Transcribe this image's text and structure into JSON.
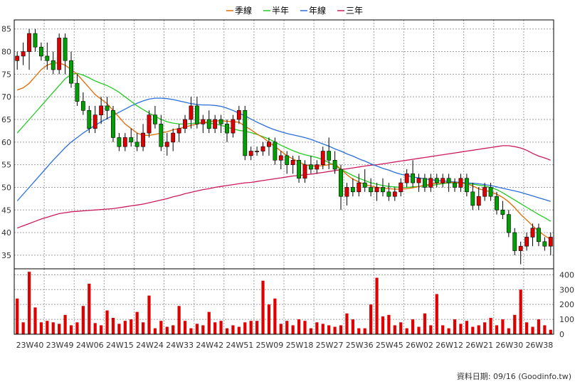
{
  "chart_data": [
    {
      "type": "candlestick",
      "legend_position": "top",
      "grid": true,
      "ylim": [
        32,
        87
      ],
      "y_ticks": [
        35,
        40,
        45,
        50,
        55,
        60,
        65,
        70,
        75,
        80,
        85
      ],
      "legend": [
        {
          "name": "季線",
          "color": "#e06a00"
        },
        {
          "name": "半年",
          "color": "#22cc22"
        },
        {
          "name": "年線",
          "color": "#2a6fdb"
        },
        {
          "name": "三年",
          "color": "#cc1a5e"
        }
      ],
      "candles": [
        [
          78,
          80,
          76,
          79
        ],
        [
          79,
          82,
          77,
          80
        ],
        [
          80,
          85,
          76,
          84
        ],
        [
          84,
          85,
          80,
          81
        ],
        [
          81,
          82,
          78,
          79
        ],
        [
          79,
          82,
          76,
          78
        ],
        [
          78,
          80,
          75,
          76
        ],
        [
          76,
          84,
          75,
          83
        ],
        [
          83,
          84,
          75,
          78
        ],
        [
          78,
          80,
          72,
          73
        ],
        [
          73,
          75,
          68,
          69
        ],
        [
          69,
          71,
          66,
          67
        ],
        [
          67,
          68,
          62,
          63
        ],
        [
          63,
          68,
          62,
          66
        ],
        [
          66,
          70,
          64,
          68
        ],
        [
          68,
          70,
          65,
          67
        ],
        [
          67,
          68,
          60,
          61
        ],
        [
          61,
          62,
          58,
          59
        ],
        [
          59,
          62,
          58,
          61
        ],
        [
          61,
          63,
          59,
          60
        ],
        [
          60,
          62,
          58,
          59
        ],
        [
          59,
          64,
          58,
          62
        ],
        [
          62,
          67,
          61,
          66
        ],
        [
          66,
          68,
          63,
          64
        ],
        [
          64,
          66,
          58,
          59
        ],
        [
          59,
          62,
          57,
          60
        ],
        [
          60,
          63,
          58,
          62
        ],
        [
          62,
          64,
          60,
          63
        ],
        [
          63,
          66,
          62,
          65
        ],
        [
          65,
          70,
          63,
          68
        ],
        [
          68,
          70,
          63,
          64
        ],
        [
          64,
          66,
          62,
          65
        ],
        [
          65,
          67,
          62,
          63
        ],
        [
          63,
          66,
          62,
          65
        ],
        [
          65,
          66,
          62,
          64
        ],
        [
          64,
          65,
          60,
          62
        ],
        [
          62,
          66,
          61,
          65
        ],
        [
          65,
          68,
          64,
          67
        ],
        [
          67,
          68,
          56,
          57
        ],
        [
          57,
          59,
          56,
          58
        ],
        [
          58,
          59,
          57,
          58
        ],
        [
          58,
          60,
          57,
          59
        ],
        [
          59,
          61,
          57,
          60
        ],
        [
          60,
          61,
          55,
          56
        ],
        [
          56,
          58,
          54,
          57
        ],
        [
          57,
          58,
          53,
          55
        ],
        [
          55,
          57,
          53,
          56
        ],
        [
          56,
          57,
          51,
          52
        ],
        [
          52,
          56,
          51,
          55
        ],
        [
          55,
          57,
          53,
          54
        ],
        [
          54,
          56,
          53,
          55
        ],
        [
          55,
          59,
          54,
          58
        ],
        [
          58,
          61,
          54,
          56
        ],
        [
          56,
          58,
          53,
          54
        ],
        [
          54,
          55,
          45,
          48
        ],
        [
          48,
          51,
          46,
          50
        ],
        [
          50,
          52,
          48,
          49
        ],
        [
          49,
          53,
          48,
          51
        ],
        [
          51,
          54,
          49,
          50
        ],
        [
          50,
          52,
          48,
          49
        ],
        [
          49,
          51,
          47,
          50
        ],
        [
          50,
          52,
          48,
          49
        ],
        [
          49,
          51,
          47,
          48
        ],
        [
          48,
          50,
          47,
          49
        ],
        [
          49,
          52,
          48,
          51
        ],
        [
          51,
          54,
          50,
          53
        ],
        [
          53,
          56,
          50,
          51
        ],
        [
          51,
          53,
          49,
          52
        ],
        [
          52,
          53,
          49,
          50
        ],
        [
          50,
          53,
          49,
          52
        ],
        [
          52,
          53,
          50,
          51
        ],
        [
          51,
          53,
          50,
          52
        ],
        [
          52,
          53,
          49,
          51
        ],
        [
          51,
          52,
          49,
          50
        ],
        [
          50,
          53,
          49,
          52
        ],
        [
          52,
          53,
          48,
          49
        ],
        [
          49,
          51,
          45,
          46
        ],
        [
          46,
          50,
          45,
          48
        ],
        [
          48,
          51,
          47,
          50
        ],
        [
          50,
          51,
          47,
          48
        ],
        [
          48,
          49,
          44,
          45
        ],
        [
          45,
          47,
          43,
          44
        ],
        [
          44,
          45,
          39,
          40
        ],
        [
          40,
          41,
          35,
          36
        ],
        [
          36,
          38,
          33,
          37
        ],
        [
          37,
          40,
          36,
          39
        ],
        [
          39,
          42,
          37,
          41
        ],
        [
          41,
          42,
          37,
          38
        ],
        [
          38,
          39,
          36,
          37
        ],
        [
          37,
          40,
          35,
          39
        ]
      ],
      "ma_quarter": [
        71.5,
        72,
        73,
        74.5,
        76,
        77,
        77.5,
        77.5,
        77,
        76,
        75,
        73.5,
        72,
        70.5,
        69.5,
        68.5,
        67,
        65.5,
        64,
        63,
        62,
        61.5,
        61.5,
        61.7,
        62,
        62.3,
        62.7,
        63,
        63.3,
        63.7,
        64,
        64.3,
        64.5,
        64.7,
        64.7,
        64.6,
        64.5,
        64.4,
        63.5,
        62.7,
        61.8,
        61,
        60,
        59,
        58,
        57,
        56.3,
        55.6,
        55,
        54.7,
        54.7,
        54.8,
        55,
        55.2,
        54,
        52.8,
        51.8,
        51.2,
        50.6,
        50.3,
        50,
        49.8,
        49.7,
        49.6,
        49.6,
        49.7,
        49.9,
        50.2,
        50.5,
        50.7,
        50.9,
        51,
        51.1,
        51.1,
        51,
        50.8,
        50.3,
        49.7,
        49.3,
        49,
        48.5,
        47.8,
        46.8,
        45.5,
        44,
        42.8,
        41.5,
        40.3,
        39.3,
        38.5
      ],
      "ma_halfyear": [
        62,
        63.5,
        65,
        66.5,
        68,
        69.5,
        71,
        72.5,
        74,
        75,
        75.2,
        74.8,
        74.2,
        73.5,
        73,
        72.5,
        71.8,
        71,
        70,
        69,
        68,
        67.2,
        66.4,
        65.7,
        65,
        64.5,
        64.2,
        64,
        64,
        64.1,
        64.2,
        64.3,
        64.2,
        64,
        63.7,
        63.3,
        62.9,
        62.6,
        62.4,
        62.1,
        61.7,
        61.2,
        60.7,
        60,
        59.3,
        58.7,
        58.1,
        57.6,
        57.2,
        56.9,
        56.6,
        56.1,
        55.5,
        54.8,
        54,
        53.3,
        52.6,
        52,
        51.5,
        51,
        50.7,
        50.4,
        50.2,
        50.1,
        50,
        50,
        50.1,
        50.2,
        50.3,
        50.4,
        50.6,
        50.8,
        51,
        51,
        50.9,
        50.8,
        50.7,
        50.5,
        50.3,
        50,
        49.5,
        48.8,
        48,
        47.2,
        46.4,
        45.6,
        44.8,
        44,
        43.3,
        42.5
      ],
      "ma_year": [
        47,
        48.5,
        50,
        51.5,
        53,
        54.5,
        56,
        57.4,
        58.8,
        60,
        61,
        62,
        62.9,
        63.7,
        64.5,
        65.2,
        65.9,
        66.6,
        67.3,
        68,
        68.6,
        69.1,
        69.5,
        69.7,
        69.7,
        69.6,
        69.4,
        69.1,
        68.8,
        68.5,
        68.3,
        68.2,
        68.2,
        68.1,
        67.9,
        67.5,
        67,
        66.4,
        65.8,
        65.1,
        64.4,
        63.8,
        63.2,
        62.7,
        62.3,
        61.9,
        61.6,
        61.3,
        61,
        60.6,
        60.1,
        59.6,
        59.1,
        58.5,
        58,
        57.4,
        56.9,
        56.3,
        55.8,
        55.2,
        54.7,
        54.2,
        53.8,
        53.3,
        52.9,
        52.6,
        52.3,
        52.1,
        51.9,
        51.7,
        51.5,
        51.4,
        51.3,
        51.2,
        51.1,
        51,
        50.9,
        50.8,
        50.6,
        50.4,
        50.1,
        49.8,
        49.5,
        49.2,
        48.9,
        48.5,
        48.1,
        47.7,
        47.3,
        46.9
      ],
      "ma_3year": [
        41,
        41.5,
        42,
        42.5,
        43,
        43.4,
        43.8,
        44.2,
        44.4,
        44.6,
        44.7,
        44.8,
        44.9,
        45,
        45.1,
        45.2,
        45.3,
        45.5,
        45.7,
        45.9,
        46.1,
        46.3,
        46.6,
        46.9,
        47.2,
        47.5,
        47.9,
        48.2,
        48.6,
        48.9,
        49.2,
        49.5,
        49.7,
        50,
        50.2,
        50.4,
        50.6,
        50.8,
        51,
        51.1,
        51.3,
        51.5,
        51.7,
        51.9,
        52.1,
        52.3,
        52.5,
        52.6,
        52.8,
        52.9,
        53.1,
        53.3,
        53.5,
        53.7,
        53.9,
        54.1,
        54.3,
        54.5,
        54.7,
        54.9,
        55,
        55.2,
        55.4,
        55.6,
        55.8,
        56,
        56.2,
        56.4,
        56.6,
        56.8,
        57,
        57.2,
        57.4,
        57.6,
        57.8,
        58,
        58.2,
        58.4,
        58.6,
        58.8,
        59,
        59.2,
        59.2,
        59,
        58.7,
        58.2,
        57.5,
        56.9,
        56.5,
        56
      ]
    },
    {
      "type": "bar",
      "ylim": [
        0,
        440
      ],
      "y_ticks": [
        0,
        100,
        200,
        300,
        400
      ],
      "x_ticks": [
        "23W40",
        "23W49",
        "24W06",
        "24W15",
        "24W24",
        "24W33",
        "24W42",
        "24W51",
        "25W09",
        "25W18",
        "25W27",
        "25W36",
        "25W45",
        "26W02",
        "26W12",
        "26W21",
        "26W30",
        "26W38"
      ],
      "bar_color": "#e00000",
      "values": [
        240,
        80,
        420,
        180,
        80,
        90,
        80,
        70,
        130,
        60,
        80,
        190,
        340,
        75,
        60,
        160,
        110,
        70,
        90,
        100,
        150,
        80,
        260,
        40,
        90,
        50,
        60,
        190,
        90,
        40,
        70,
        60,
        150,
        80,
        90,
        40,
        60,
        50,
        80,
        90,
        90,
        360,
        200,
        240,
        70,
        90,
        60,
        100,
        90,
        40,
        80,
        70,
        60,
        50,
        60,
        140,
        100,
        40,
        40,
        200,
        380,
        120,
        130,
        60,
        80,
        40,
        100,
        50,
        140,
        60,
        270,
        60,
        40,
        100,
        70,
        90,
        50,
        60,
        80,
        110,
        60,
        100,
        40,
        130,
        300,
        80,
        50,
        100,
        60,
        30
      ]
    }
  ],
  "footer": {
    "label": "資料日期: 09/16  (Goodinfo.tw)"
  }
}
